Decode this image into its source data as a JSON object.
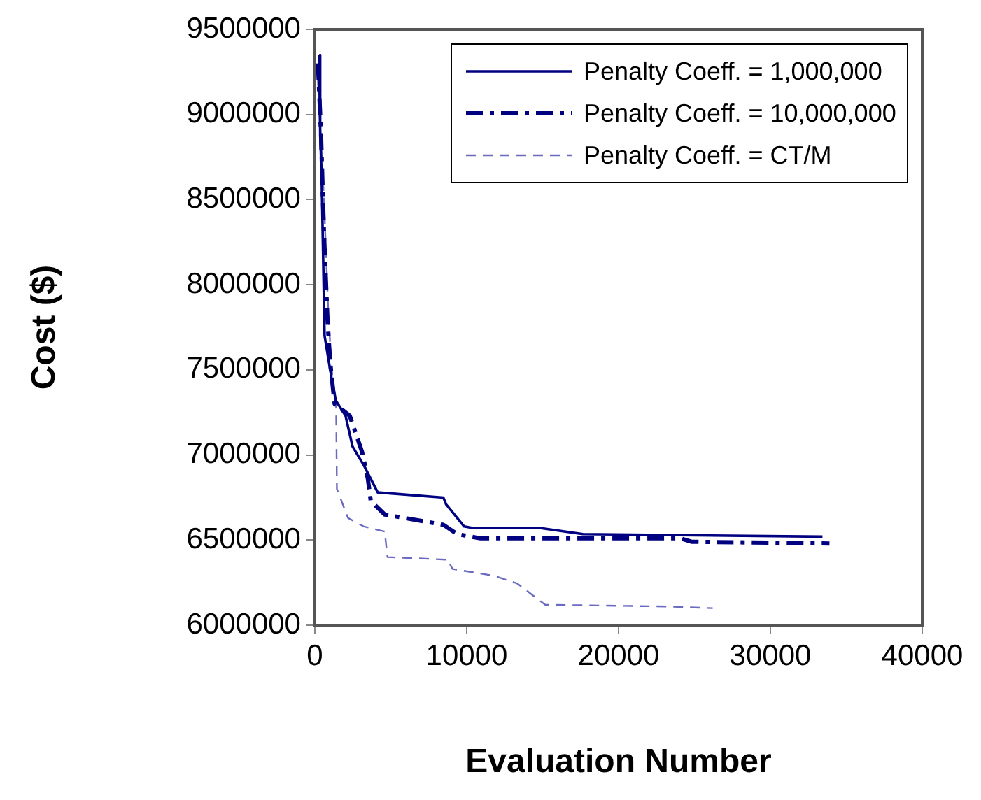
{
  "chart_data": {
    "type": "line",
    "xlabel": "Evaluation Number",
    "ylabel": "Cost ($)",
    "xlim": [
      0,
      40000
    ],
    "xticks": [
      0,
      10000,
      20000,
      30000,
      40000
    ],
    "ylim": [
      6000000,
      9500000
    ],
    "yticks": [
      6000000,
      6500000,
      7000000,
      7500000,
      8000000,
      8500000,
      9000000,
      9500000
    ],
    "grid": false,
    "legend": "top right",
    "marker": "none",
    "series": [
      {
        "name": "Penalty Coeff. = 1,000,000",
        "color": "#000080",
        "line_style": "solid",
        "x": [
          280,
          350,
          450,
          640,
          1100,
          1380,
          2020,
          2480,
          3220,
          4140,
          8460,
          8640,
          9830,
          10450,
          14890,
          17650,
          33430
        ],
        "values": [
          9350000,
          8900000,
          8620000,
          7700000,
          7450000,
          7320000,
          7230000,
          7050000,
          6940000,
          6780000,
          6750000,
          6710000,
          6580000,
          6570000,
          6570000,
          6535000,
          6520000
        ]
      },
      {
        "name": "Penalty Coeff. = 10,000,000",
        "color": "#000080",
        "line_style": "dashdot",
        "x": [
          200,
          400,
          600,
          830,
          1000,
          1300,
          2300,
          3100,
          3490,
          3680,
          4600,
          8460,
          9370,
          10900,
          24080,
          24800,
          33890
        ],
        "values": [
          9300000,
          8900000,
          8300000,
          7800000,
          7550000,
          7300000,
          7230000,
          7020000,
          6860000,
          6730000,
          6650000,
          6590000,
          6535000,
          6510000,
          6510000,
          6490000,
          6480000
        ]
      },
      {
        "name": "Penalty Coeff. = CT/M",
        "color": "#6a6ac0",
        "line_style": "dashed",
        "x": [
          200,
          600,
          900,
          1200,
          1400,
          1450,
          2180,
          3220,
          4600,
          4780,
          8730,
          9070,
          11830,
          13330,
          15170,
          23160,
          26200
        ],
        "values": [
          9200000,
          8500000,
          7800000,
          7400000,
          7290000,
          6800000,
          6630000,
          6580000,
          6550000,
          6400000,
          6385000,
          6330000,
          6290000,
          6245000,
          6120000,
          6110000,
          6100000
        ]
      }
    ]
  }
}
